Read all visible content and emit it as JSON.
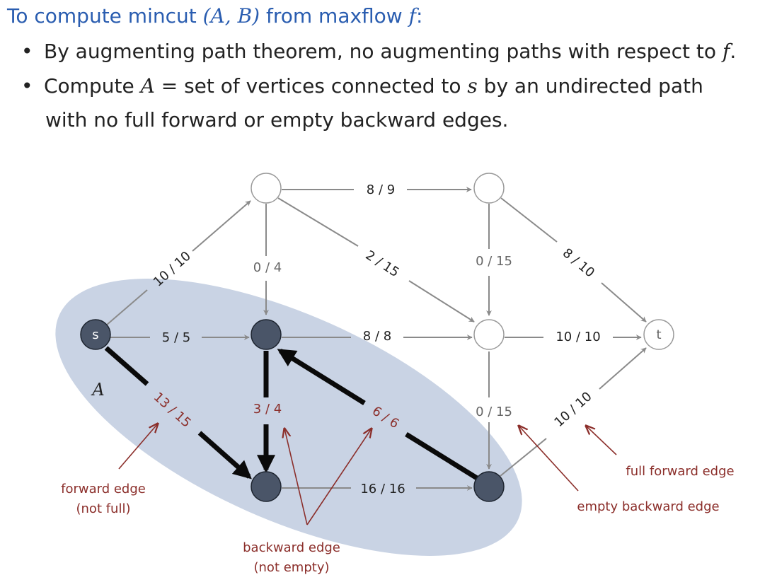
{
  "header": {
    "title_prefix": "To compute mincut ",
    "title_math": "(A, B)",
    "title_mid": " from maxflow ",
    "title_f": "f",
    "title_suffix": ":"
  },
  "bullets": {
    "b1_text": "By augmenting path theorem, no augmenting paths with respect to ",
    "b1_f": "f",
    "b1_end": ".",
    "b2_prefix": "Compute ",
    "b2_A": "A",
    "b2_eq": " = ",
    "b2_mid": "set of vertices connected to ",
    "b2_s": "s",
    "b2_end": " by an undirected path",
    "b2_line2": "with no full forward or empty backward edges."
  },
  "graph": {
    "set_label": "A",
    "source_label": "s",
    "sink_label": "t",
    "edges": {
      "e_v1_v2": "8 / 9",
      "e_s_v1": "10 / 10",
      "e_v1_v4": "0 / 4",
      "e_v1_v5": "2 / 15",
      "e_v2_v5": "0 / 15",
      "e_v2_t": "8 / 10",
      "e_s_v4": "5 / 5",
      "e_v4_v5": "8 / 8",
      "e_v5_t": "10 / 10",
      "e_s_v7": "13 / 15",
      "e_v4_v7": "3 / 4",
      "e_v8_v4": "6 / 6",
      "e_v5_v8": "0 / 15",
      "e_v8_t": "10 / 10",
      "e_v7_v8": "16 / 16"
    }
  },
  "annotations": {
    "forward_line1": "forward edge",
    "forward_line2": "(not full)",
    "backward_line1": "backward edge",
    "backward_line2": "(not empty)",
    "full_forward": "full forward edge",
    "empty_backward": "empty backward edge"
  },
  "colors": {
    "title": "#2a5db0",
    "annotation": "#8b2e2a",
    "region": "#c9d3e4",
    "node_fill": "#4a5568"
  }
}
